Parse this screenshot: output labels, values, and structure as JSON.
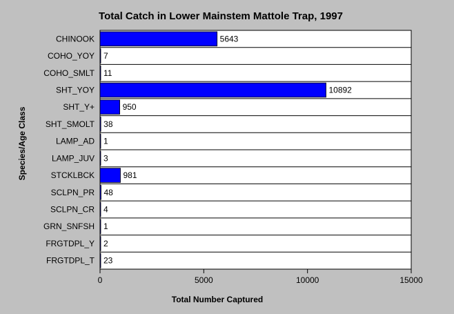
{
  "chart_data": {
    "type": "bar",
    "orientation": "horizontal",
    "title": "Total Catch in Lower Mainstem Mattole Trap, 1997",
    "xlabel": "Total Number Captured",
    "ylabel": "Species/Age Class",
    "categories": [
      "CHINOOK",
      "COHO_YOY",
      "COHO_SMLT",
      "SHT_YOY",
      "SHT_Y+",
      "SHT_SMOLT",
      "LAMP_AD",
      "LAMP_JUV",
      "STCKLBCK",
      "SCLPN_PR",
      "SCLPN_CR",
      "GRN_SNFSH",
      "FRGTDPL_Y",
      "FRGTDPL_T"
    ],
    "values": [
      5643,
      7,
      11,
      10892,
      950,
      38,
      1,
      3,
      981,
      48,
      4,
      1,
      2,
      23
    ],
    "xlim": [
      0,
      15000
    ],
    "xticks": [
      0,
      5000,
      10000,
      15000
    ],
    "grid": "horizontal-separators",
    "bar_color": "#0000ff",
    "background_color": "#c0c0c0",
    "plot_background_color": "#ffffff"
  }
}
